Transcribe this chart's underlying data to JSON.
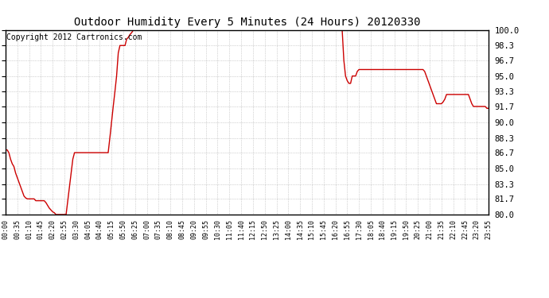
{
  "title": "Outdoor Humidity Every 5 Minutes (24 Hours) 20120330",
  "copyright": "Copyright 2012 Cartronics.com",
  "line_color": "#cc0000",
  "background_color": "#ffffff",
  "plot_bg_color": "#ffffff",
  "grid_color": "#999999",
  "ylim": [
    80.0,
    100.0
  ],
  "yticks": [
    80.0,
    81.7,
    83.3,
    85.0,
    86.7,
    88.3,
    90.0,
    91.7,
    93.3,
    95.0,
    96.7,
    98.3,
    100.0
  ],
  "time_points": [
    "00:00",
    "00:05",
    "00:10",
    "00:15",
    "00:20",
    "00:25",
    "00:30",
    "00:35",
    "00:40",
    "00:45",
    "00:50",
    "00:55",
    "01:00",
    "01:05",
    "01:10",
    "01:15",
    "01:20",
    "01:25",
    "01:30",
    "01:35",
    "01:40",
    "01:45",
    "01:50",
    "01:55",
    "02:00",
    "02:05",
    "02:10",
    "02:15",
    "02:20",
    "02:25",
    "02:30",
    "02:35",
    "02:40",
    "02:45",
    "02:50",
    "02:55",
    "03:00",
    "03:05",
    "03:10",
    "03:15",
    "03:20",
    "03:25",
    "03:30",
    "03:35",
    "03:40",
    "03:45",
    "03:50",
    "03:55",
    "04:00",
    "04:05",
    "04:10",
    "04:15",
    "04:20",
    "04:25",
    "04:30",
    "04:35",
    "04:40",
    "04:45",
    "04:50",
    "04:55",
    "05:00",
    "05:05",
    "05:10",
    "05:15",
    "05:20",
    "05:25",
    "05:30",
    "05:35",
    "05:40",
    "05:45",
    "05:50",
    "05:55",
    "06:00",
    "06:05",
    "06:10",
    "06:15",
    "06:20",
    "06:25",
    "06:30",
    "06:35",
    "06:40",
    "06:45",
    "06:50",
    "06:55",
    "07:00",
    "07:05",
    "07:10",
    "07:15",
    "07:20",
    "07:25",
    "07:30",
    "07:35",
    "07:40",
    "07:45",
    "07:50",
    "07:55",
    "08:00",
    "08:05",
    "08:10",
    "08:15",
    "08:20",
    "08:25",
    "08:30",
    "08:35",
    "08:40",
    "08:45",
    "08:50",
    "08:55",
    "09:00",
    "09:05",
    "09:10",
    "09:15",
    "09:20",
    "09:25",
    "09:30",
    "09:35",
    "09:40",
    "09:45",
    "09:50",
    "09:55",
    "10:00",
    "10:05",
    "10:10",
    "10:15",
    "10:20",
    "10:25",
    "10:30",
    "10:35",
    "10:40",
    "10:45",
    "10:50",
    "10:55",
    "11:00",
    "11:05",
    "11:10",
    "11:15",
    "11:20",
    "11:25",
    "11:30",
    "11:35",
    "11:40",
    "11:45",
    "11:50",
    "11:55",
    "12:00",
    "12:05",
    "12:10",
    "12:15",
    "12:20",
    "12:25",
    "12:30",
    "12:35",
    "12:40",
    "12:45",
    "12:50",
    "12:55",
    "13:00",
    "13:05",
    "13:10",
    "13:15",
    "13:20",
    "13:25",
    "13:30",
    "13:35",
    "13:40",
    "13:45",
    "13:50",
    "13:55",
    "14:00",
    "14:05",
    "14:10",
    "14:15",
    "14:20",
    "14:25",
    "14:30",
    "14:35",
    "14:40",
    "14:45",
    "14:50",
    "14:55",
    "15:00",
    "15:05",
    "15:10",
    "15:15",
    "15:20",
    "15:25",
    "15:30",
    "15:35",
    "15:40",
    "15:45",
    "15:50",
    "15:55",
    "16:00",
    "16:05",
    "16:10",
    "16:15",
    "16:20",
    "16:25",
    "16:30",
    "16:35",
    "16:40",
    "16:45",
    "16:50",
    "16:55",
    "17:00",
    "17:05",
    "17:10",
    "17:15",
    "17:20",
    "17:25",
    "17:30",
    "17:35",
    "17:40",
    "17:45",
    "17:50",
    "17:55",
    "18:00",
    "18:05",
    "18:10",
    "18:15",
    "18:20",
    "18:25",
    "18:30",
    "18:35",
    "18:40",
    "18:45",
    "18:50",
    "18:55",
    "19:00",
    "19:05",
    "19:10",
    "19:15",
    "19:20",
    "19:25",
    "19:30",
    "19:35",
    "19:40",
    "19:45",
    "19:50",
    "19:55",
    "20:00",
    "20:05",
    "20:10",
    "20:15",
    "20:20",
    "20:25",
    "20:30",
    "20:35",
    "20:40",
    "20:45",
    "20:50",
    "20:55",
    "21:00",
    "21:05",
    "21:10",
    "21:15",
    "21:20",
    "21:25",
    "21:30",
    "21:35",
    "21:40",
    "21:45",
    "21:50",
    "21:55",
    "22:00",
    "22:05",
    "22:10",
    "22:15",
    "22:20",
    "22:25",
    "22:30",
    "22:35",
    "22:40",
    "22:45",
    "22:50",
    "22:55",
    "23:00",
    "23:05",
    "23:10",
    "23:15",
    "23:20",
    "23:25",
    "23:30",
    "23:35",
    "23:40",
    "23:45",
    "23:50",
    "23:55"
  ],
  "humidity_values": [
    87.0,
    87.0,
    86.7,
    86.0,
    85.5,
    85.2,
    84.5,
    84.0,
    83.5,
    83.0,
    82.5,
    82.0,
    81.8,
    81.7,
    81.7,
    81.7,
    81.7,
    81.7,
    81.5,
    81.5,
    81.5,
    81.5,
    81.5,
    81.5,
    81.3,
    81.0,
    80.7,
    80.5,
    80.3,
    80.2,
    80.0,
    80.0,
    80.0,
    80.0,
    80.0,
    80.0,
    80.0,
    81.5,
    83.0,
    84.5,
    86.0,
    86.7,
    86.7,
    86.7,
    86.7,
    86.7,
    86.7,
    86.7,
    86.7,
    86.7,
    86.7,
    86.7,
    86.7,
    86.7,
    86.7,
    86.7,
    86.7,
    86.7,
    86.7,
    86.7,
    86.7,
    86.7,
    88.3,
    90.0,
    91.7,
    93.3,
    95.0,
    97.5,
    98.3,
    98.3,
    98.3,
    98.3,
    99.0,
    99.2,
    99.5,
    99.7,
    100.0,
    100.0,
    100.0,
    100.0,
    100.0,
    100.0,
    100.0,
    100.0,
    100.0,
    100.0,
    100.0,
    100.0,
    100.0,
    100.0,
    100.0,
    100.0,
    100.0,
    100.0,
    100.0,
    100.0,
    100.0,
    100.0,
    100.0,
    100.0,
    100.0,
    100.0,
    100.0,
    100.0,
    100.0,
    100.0,
    100.0,
    100.0,
    100.0,
    100.0,
    100.0,
    100.0,
    100.0,
    100.0,
    100.0,
    100.0,
    100.0,
    100.0,
    100.0,
    100.0,
    100.0,
    100.0,
    100.0,
    100.0,
    100.0,
    100.0,
    100.0,
    100.0,
    100.0,
    100.0,
    100.0,
    100.0,
    100.0,
    100.0,
    100.0,
    100.0,
    100.0,
    100.0,
    100.0,
    100.0,
    100.0,
    100.0,
    100.0,
    100.0,
    100.0,
    100.0,
    100.0,
    100.0,
    100.0,
    100.0,
    100.0,
    100.0,
    100.0,
    100.0,
    100.0,
    100.0,
    100.0,
    100.0,
    100.0,
    100.0,
    100.0,
    100.0,
    100.0,
    100.0,
    100.0,
    100.0,
    100.0,
    100.0,
    100.0,
    100.0,
    100.0,
    100.0,
    100.0,
    100.0,
    100.0,
    100.0,
    100.0,
    100.0,
    100.0,
    100.0,
    100.0,
    100.0,
    100.0,
    100.0,
    100.0,
    100.0,
    100.0,
    100.0,
    100.0,
    100.0,
    100.0,
    100.0,
    100.0,
    100.0,
    100.0,
    100.0,
    100.0,
    100.0,
    100.0,
    100.0,
    100.0,
    96.7,
    95.0,
    94.5,
    94.2,
    94.2,
    95.0,
    95.0,
    95.0,
    95.5,
    95.7,
    95.7,
    95.7,
    95.7,
    95.7,
    95.7,
    95.7,
    95.7,
    95.7,
    95.7,
    95.7,
    95.7,
    95.7,
    95.7,
    95.7,
    95.7,
    95.7,
    95.7,
    95.7,
    95.7,
    95.7,
    95.7,
    95.7,
    95.7,
    95.7,
    95.7,
    95.7,
    95.7,
    95.7,
    95.7,
    95.7,
    95.7,
    95.7,
    95.7,
    95.7,
    95.7,
    95.7,
    95.7,
    95.7,
    95.5,
    95.0,
    94.5,
    94.0,
    93.5,
    93.0,
    92.5,
    92.0,
    92.0,
    92.0,
    92.0,
    92.2,
    92.5,
    93.0,
    93.0,
    93.0,
    93.0,
    93.0,
    93.0,
    93.0,
    93.0,
    93.0,
    93.0,
    93.0,
    93.0,
    93.0,
    93.0,
    92.5,
    92.0,
    91.7,
    91.7,
    91.7,
    91.7,
    91.7,
    91.7,
    91.7,
    91.7,
    91.5,
    91.5
  ],
  "xtick_step": 7,
  "title_fontsize": 10,
  "tick_fontsize": 6,
  "copyright_fontsize": 7
}
